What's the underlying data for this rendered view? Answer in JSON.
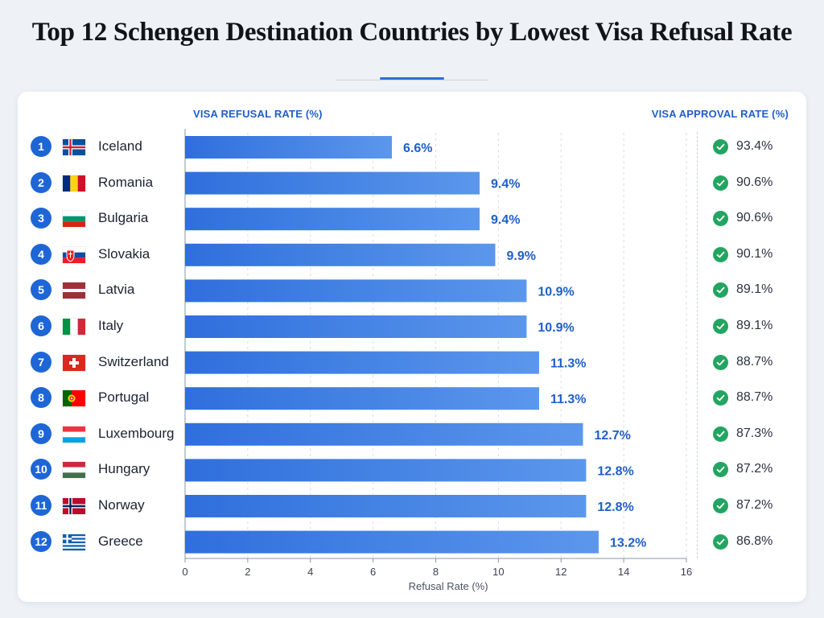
{
  "title": "Top 12 Schengen Destination Countries by Lowest Visa Refusal Rate",
  "header_left": "VISA REFUSAL RATE (%)",
  "header_right": "VISA APPROVAL RATE (%)",
  "colors": {
    "bar": "#3f82e6",
    "label": "#1f5fc8",
    "rank": "#1e66d6",
    "check": "#22a560",
    "grid": "#d6dde8"
  },
  "rows": [
    {
      "rank": "1",
      "country": "Iceland",
      "flag": "iceland-flag",
      "refusal_label": "6.6%",
      "approval_label": "93.4%"
    },
    {
      "rank": "2",
      "country": "Romania",
      "flag": "romania-flag",
      "refusal_label": "9.4%",
      "approval_label": "90.6%"
    },
    {
      "rank": "3",
      "country": "Bulgaria",
      "flag": "bulgaria-flag",
      "refusal_label": "9.4%",
      "approval_label": "90.6%"
    },
    {
      "rank": "4",
      "country": "Slovakia",
      "flag": "slovakia-flag",
      "refusal_label": "9.9%",
      "approval_label": "90.1%"
    },
    {
      "rank": "5",
      "country": "Latvia",
      "flag": "latvia-flag",
      "refusal_label": "10.9%",
      "approval_label": "89.1%"
    },
    {
      "rank": "6",
      "country": "Italy",
      "flag": "italy-flag",
      "refusal_label": "10.9%",
      "approval_label": "89.1%"
    },
    {
      "rank": "7",
      "country": "Switzerland",
      "flag": "switzerland-flag",
      "refusal_label": "11.3%",
      "approval_label": "88.7%"
    },
    {
      "rank": "8",
      "country": "Portugal",
      "flag": "portugal-flag",
      "refusal_label": "11.3%",
      "approval_label": "88.7%"
    },
    {
      "rank": "9",
      "country": "Luxembourg",
      "flag": "luxembourg-flag",
      "refusal_label": "12.7%",
      "approval_label": "87.3%"
    },
    {
      "rank": "10",
      "country": "Hungary",
      "flag": "hungary-flag",
      "refusal_label": "12.8%",
      "approval_label": "87.2%"
    },
    {
      "rank": "11",
      "country": "Norway",
      "flag": "norway-flag",
      "refusal_label": "12.8%",
      "approval_label": "87.2%"
    },
    {
      "rank": "12",
      "country": "Greece",
      "flag": "greece-flag",
      "refusal_label": "13.2%",
      "approval_label": "86.8%"
    }
  ],
  "chart_data": {
    "type": "bar",
    "orientation": "horizontal",
    "categories": [
      "Iceland",
      "Romania",
      "Bulgaria",
      "Slovakia",
      "Latvia",
      "Italy",
      "Switzerland",
      "Portugal",
      "Luxembourg",
      "Hungary",
      "Norway",
      "Greece"
    ],
    "values": [
      6.6,
      9.4,
      9.4,
      9.9,
      10.9,
      10.9,
      11.3,
      11.3,
      12.7,
      12.8,
      12.8,
      13.2
    ],
    "secondary_values": [
      93.4,
      90.6,
      90.6,
      90.1,
      89.1,
      89.1,
      88.7,
      88.7,
      87.3,
      87.2,
      87.2,
      86.8
    ],
    "title": "Top 12 Schengen Destination Countries by Lowest Visa Refusal Rate",
    "xlabel": "Refusal Rate (%)",
    "ylabel": "",
    "xlim": [
      0,
      16
    ],
    "xticks": [
      "0",
      "2",
      "4",
      "6",
      "8",
      "10",
      "12",
      "14",
      "16"
    ],
    "grid": true,
    "legend": "none"
  }
}
